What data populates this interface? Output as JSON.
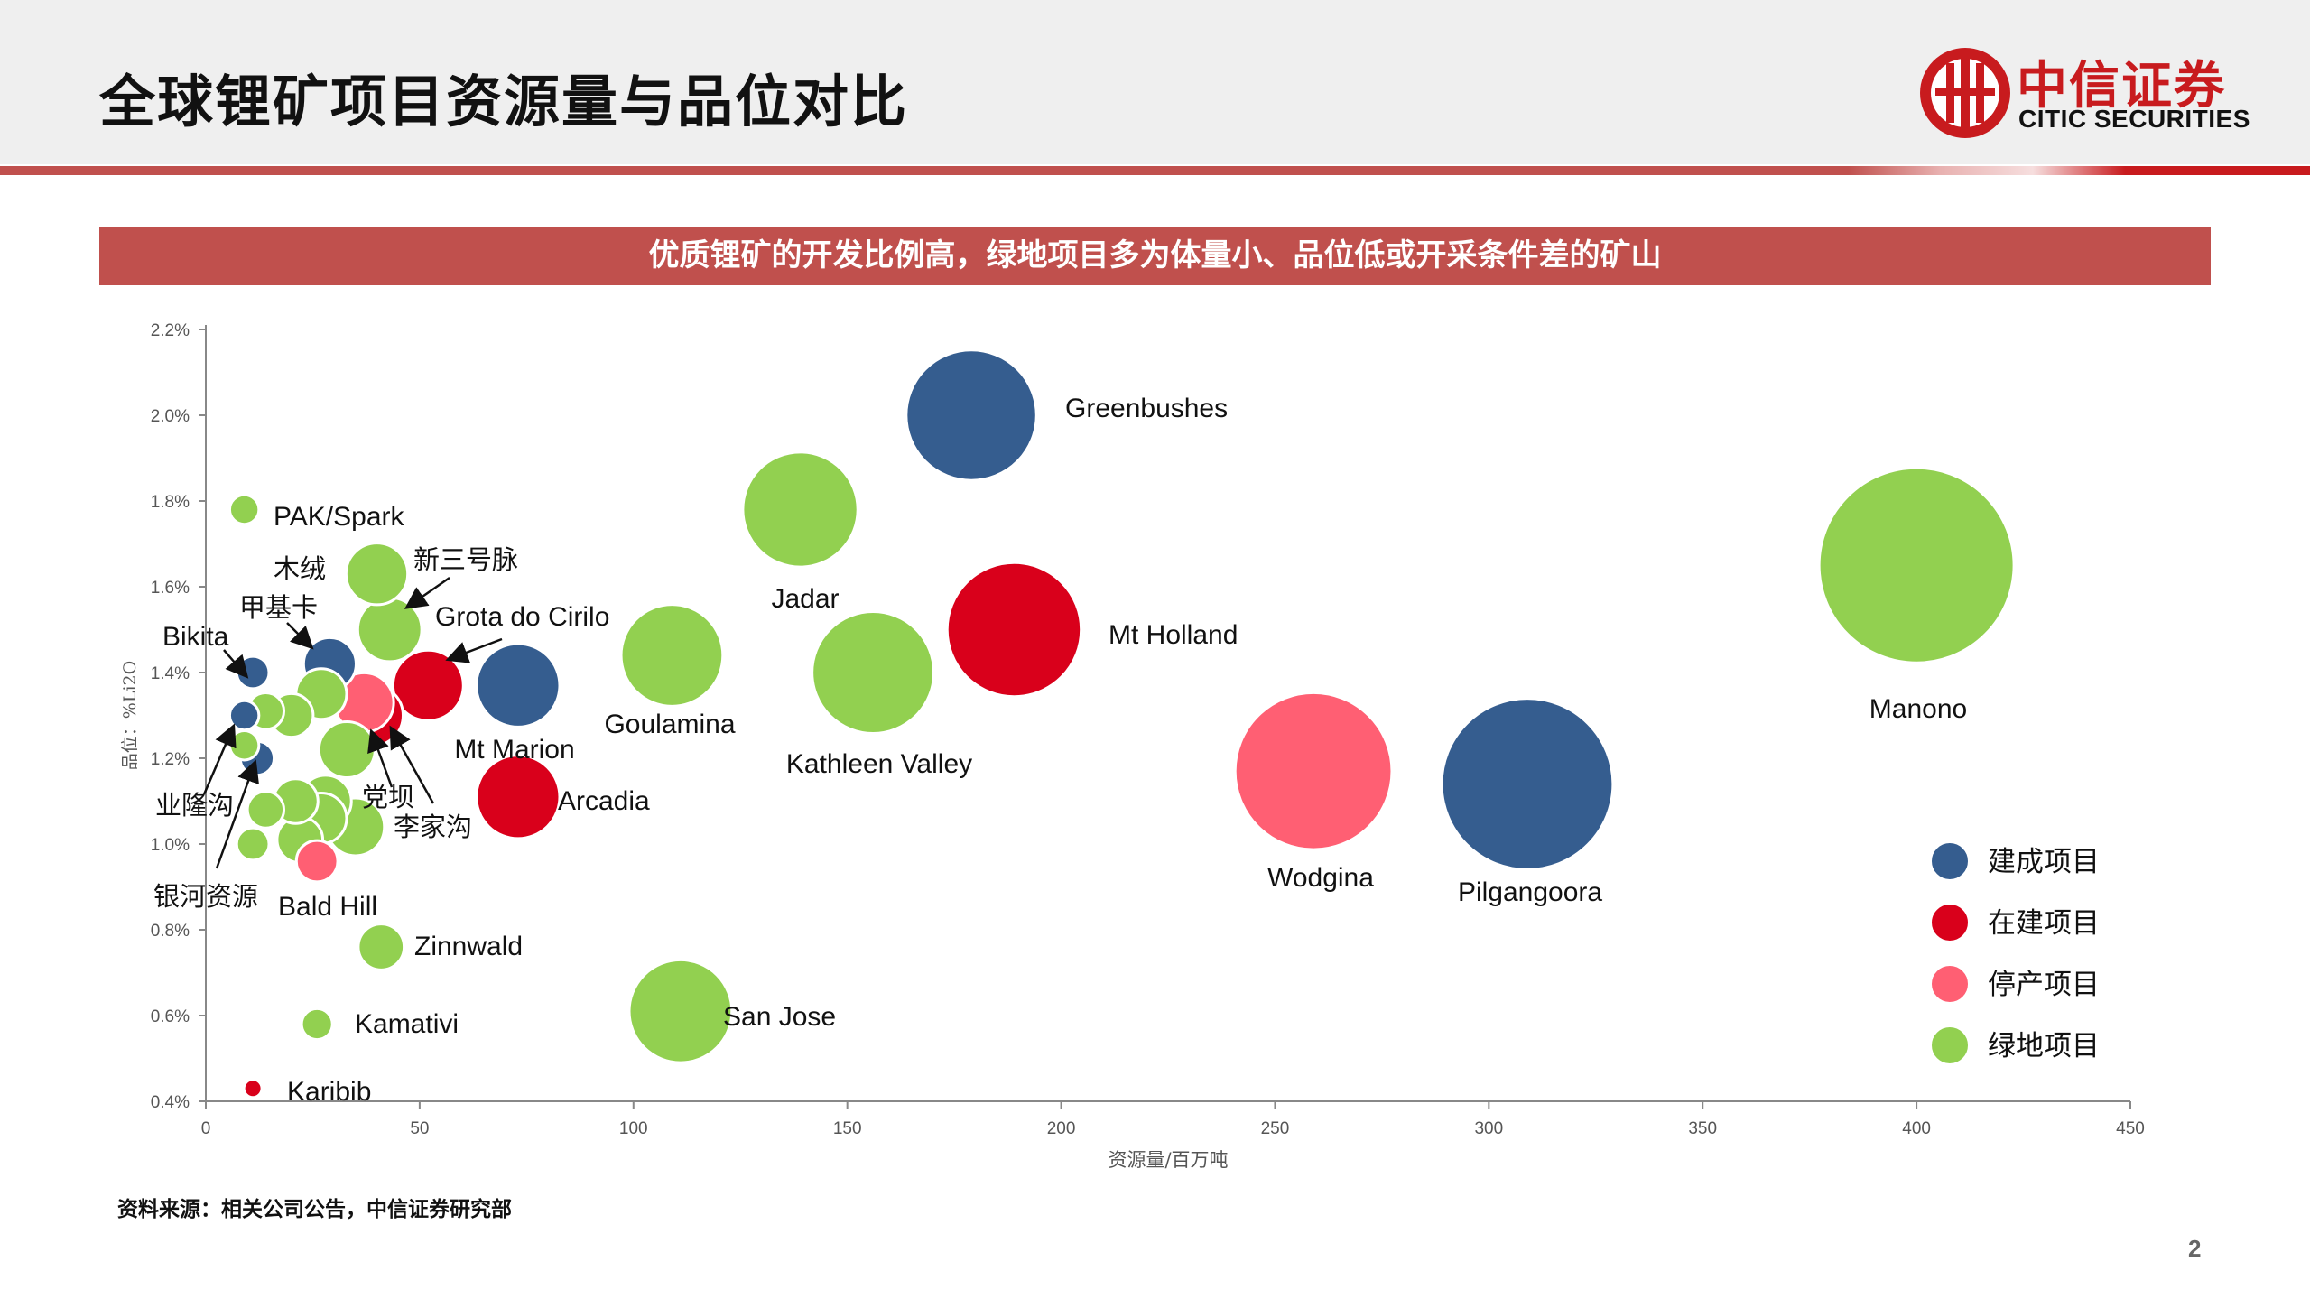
{
  "page": {
    "title": "全球锂矿项目资源量与品位对比",
    "banner": "优质锂矿的开发比例高，绿地项目多为体量小、品位低或开采条件差的矿山",
    "source": "资料来源：相关公司公告，中信证券研究部",
    "page_number": "2"
  },
  "logo": {
    "cn": "中信证券",
    "en": "CITIC SECURITIES",
    "color": "#c81b1e"
  },
  "chart_data": {
    "type": "bubble",
    "xlabel": "资源量/百万吨",
    "ylabel": "品位：%Li2O",
    "xlim": [
      0,
      450
    ],
    "ylim": [
      0.4,
      2.2
    ],
    "x_ticks": [
      "0",
      "50",
      "100",
      "150",
      "200",
      "250",
      "300",
      "350",
      "400",
      "450"
    ],
    "y_ticks": [
      "0.4%",
      "0.6%",
      "0.8%",
      "1.0%",
      "1.2%",
      "1.4%",
      "1.6%",
      "1.8%",
      "2.0%",
      "2.2%"
    ],
    "legend_position": "bottom-right",
    "series": [
      {
        "name": "建成项目",
        "color": "#355d8f"
      },
      {
        "name": "在建项目",
        "color": "#d9001b"
      },
      {
        "name": "停产项目",
        "color": "#ff5f73"
      },
      {
        "name": "绿地项目",
        "color": "#92d050"
      }
    ],
    "points": [
      {
        "label": "Greenbushes",
        "series": 0,
        "x": 179,
        "y": 2.0,
        "size": 179
      },
      {
        "label": "Pilgangoora",
        "series": 0,
        "x": 309,
        "y": 1.14,
        "size": 309
      },
      {
        "label": "Mt Marion",
        "series": 0,
        "x": 73,
        "y": 1.37,
        "size": 73
      },
      {
        "label": "Bikita",
        "series": 0,
        "x": 11,
        "y": 1.4,
        "size": 11
      },
      {
        "label": "甲基卡",
        "series": 0,
        "x": 29,
        "y": 1.42,
        "size": 29
      },
      {
        "label": "业隆沟",
        "series": 0,
        "x": 9,
        "y": 1.3,
        "size": 9
      },
      {
        "label": "银河资源",
        "series": 0,
        "x": 12,
        "y": 1.2,
        "size": 12
      },
      {
        "label": "Mt Holland",
        "series": 1,
        "x": 189,
        "y": 1.5,
        "size": 189
      },
      {
        "label": "Arcadia",
        "series": 1,
        "x": 73,
        "y": 1.11,
        "size": 73
      },
      {
        "label": "Grota do Cirilo",
        "series": 1,
        "x": 52,
        "y": 1.37,
        "size": 52
      },
      {
        "label": "李家沟",
        "series": 1,
        "x": 39,
        "y": 1.3,
        "size": 39
      },
      {
        "label": "Karibib",
        "series": 1,
        "x": 11,
        "y": 0.43,
        "size": 3
      },
      {
        "label": "Wodgina",
        "series": 2,
        "x": 259,
        "y": 1.17,
        "size": 259
      },
      {
        "label": "党坝",
        "series": 2,
        "x": 37,
        "y": 1.33,
        "size": 37
      },
      {
        "label": "Bald Hill",
        "series": 2,
        "x": 26,
        "y": 0.96,
        "size": 18
      },
      {
        "label": "Manono",
        "series": 3,
        "x": 400,
        "y": 1.65,
        "size": 400
      },
      {
        "label": "Jadar",
        "series": 3,
        "x": 139,
        "y": 1.78,
        "size": 139
      },
      {
        "label": "Kathleen Valley",
        "series": 3,
        "x": 156,
        "y": 1.4,
        "size": 156
      },
      {
        "label": "Goulamina",
        "series": 3,
        "x": 109,
        "y": 1.44,
        "size": 109
      },
      {
        "label": "San Jose",
        "series": 3,
        "x": 111,
        "y": 0.61,
        "size": 111
      },
      {
        "label": "PAK/Spark",
        "series": 3,
        "x": 9,
        "y": 1.78,
        "size": 9
      },
      {
        "label": "新三号脉",
        "series": 3,
        "x": 40,
        "y": 1.63,
        "size": 40
      },
      {
        "label": "木绒",
        "series": 3,
        "x": 43,
        "y": 1.5,
        "size": 43
      },
      {
        "label": "Zinnwald",
        "series": 3,
        "x": 41,
        "y": 0.76,
        "size": 22
      },
      {
        "label": "Kamativi",
        "series": 3,
        "x": 26,
        "y": 0.58,
        "size": 10
      },
      {
        "label": "",
        "series": 3,
        "x": 33,
        "y": 1.22,
        "size": 33
      },
      {
        "label": "",
        "series": 3,
        "x": 27,
        "y": 1.35,
        "size": 27
      },
      {
        "label": "",
        "series": 3,
        "x": 20,
        "y": 1.3,
        "size": 20
      },
      {
        "label": "",
        "series": 3,
        "x": 14,
        "y": 1.31,
        "size": 14
      },
      {
        "label": "",
        "series": 3,
        "x": 9,
        "y": 1.23,
        "size": 9
      },
      {
        "label": "",
        "series": 3,
        "x": 14,
        "y": 1.08,
        "size": 14
      },
      {
        "label": "",
        "series": 3,
        "x": 21,
        "y": 1.1,
        "size": 21
      },
      {
        "label": "",
        "series": 3,
        "x": 28,
        "y": 1.1,
        "size": 28
      },
      {
        "label": "",
        "series": 3,
        "x": 22,
        "y": 1.01,
        "size": 22
      },
      {
        "label": "",
        "series": 3,
        "x": 27,
        "y": 1.06,
        "size": 27
      },
      {
        "label": "",
        "series": 3,
        "x": 35,
        "y": 1.04,
        "size": 35
      },
      {
        "label": "",
        "series": 3,
        "x": 11,
        "y": 1.0,
        "size": 11
      }
    ]
  }
}
